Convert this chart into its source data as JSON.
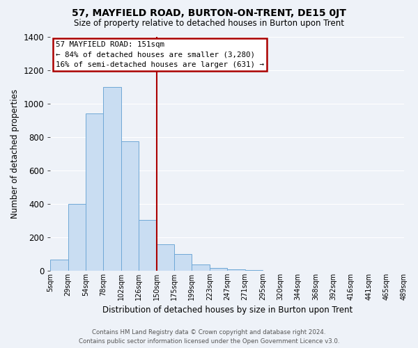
{
  "title": "57, MAYFIELD ROAD, BURTON-ON-TRENT, DE15 0JT",
  "subtitle": "Size of property relative to detached houses in Burton upon Trent",
  "xlabel": "Distribution of detached houses by size in Burton upon Trent",
  "ylabel": "Number of detached properties",
  "tick_labels": [
    "5sqm",
    "29sqm",
    "54sqm",
    "78sqm",
    "102sqm",
    "126sqm",
    "150sqm",
    "175sqm",
    "199sqm",
    "223sqm",
    "247sqm",
    "271sqm",
    "295sqm",
    "320sqm",
    "344sqm",
    "368sqm",
    "392sqm",
    "416sqm",
    "441sqm",
    "465sqm",
    "489sqm"
  ],
  "bar_values": [
    65,
    400,
    940,
    1100,
    775,
    305,
    160,
    100,
    38,
    18,
    8,
    3,
    0,
    0,
    0,
    0,
    0,
    0,
    0,
    0
  ],
  "bar_color": "#c9ddf2",
  "bar_edge_color": "#6fa8d6",
  "vline_pos": 6,
  "vline_color": "#aa0000",
  "annotation_title": "57 MAYFIELD ROAD: 151sqm",
  "annotation_line1": "← 84% of detached houses are smaller (3,280)",
  "annotation_line2": "16% of semi-detached houses are larger (631) →",
  "ylim": [
    0,
    1400
  ],
  "yticks": [
    0,
    200,
    400,
    600,
    800,
    1000,
    1200,
    1400
  ],
  "footer_line1": "Contains HM Land Registry data © Crown copyright and database right 2024.",
  "footer_line2": "Contains public sector information licensed under the Open Government Licence v3.0.",
  "bg_color": "#eef2f8",
  "grid_color": "#ffffff"
}
